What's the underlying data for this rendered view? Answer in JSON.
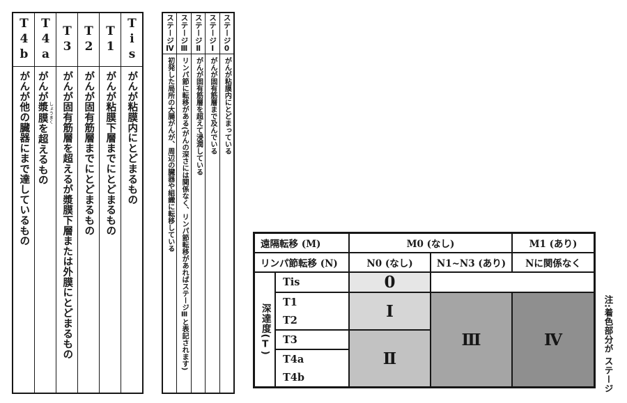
{
  "t_table": {
    "columns": [
      {
        "label": "T4b",
        "desc": "がんが他の臓器にまで達しているもの"
      },
      {
        "label": "T4a",
        "desc_pre": "がんが",
        "ruby_base": "漿膜",
        "ruby_text": "しょうまく",
        "desc_post": "を超えるもの"
      },
      {
        "label": "T3",
        "desc": "がんが固有筋層を超えるが漿膜下層または外膜にとどまるもの"
      },
      {
        "label": "T2",
        "desc": "がんが固有筋層までにとどまるもの"
      },
      {
        "label": "T1",
        "desc": "がんが粘膜下層までにとどまるもの"
      },
      {
        "label": "Tis",
        "desc": "がんが粘膜内にとどまるもの"
      }
    ]
  },
  "stage_table": {
    "columns": [
      {
        "prefix": "ステージ",
        "numeral": "Ⅳ",
        "desc": "初発した局所の大腸がんが、周辺の臓器や組織に転移している"
      },
      {
        "prefix": "ステージ",
        "numeral": "Ⅲ",
        "desc": "リンパ節に転移がある(がんの深さには関係なく、リンパ節転移があればステージⅢと表記されます)"
      },
      {
        "prefix": "ステージ",
        "numeral": "Ⅱ",
        "desc": "がんが固有筋層を超えて浸潤している"
      },
      {
        "prefix": "ステージ",
        "numeral": "Ⅰ",
        "desc": "がんが固有筋層まで及んでいる"
      },
      {
        "prefix": "ステージ",
        "numeral": "0",
        "desc": "がんが粘膜内にとどまっている"
      }
    ]
  },
  "matrix": {
    "m_row_label": "遠隔転移 (M)",
    "m0": "M0 (なし)",
    "m1": "M1 (あり)",
    "n_row_label": "リンパ節転移 (N)",
    "n0": "N0 (なし)",
    "n1n3": "N1~N3 (あり)",
    "n_any": "Nに関係なく",
    "depth": {
      "main": "深達度",
      "open": "(",
      "t": "T",
      "close": ")"
    },
    "t_labels": {
      "tis": "Tis",
      "t1": "T1",
      "t2": "T2",
      "t3": "T3",
      "t4a": "T4a",
      "t4b": "T4b"
    },
    "stages": {
      "s0": "0",
      "s1": "Ⅰ",
      "s2": "Ⅱ",
      "s3": "Ⅲ",
      "s4": "Ⅳ"
    },
    "colors": {
      "stage0_bg": "#e6e6e6",
      "stage1_bg": "#d6d6d6",
      "stage2_bg": "#c2c2c2",
      "stage3_bg": "#a5a5a5",
      "stage4_bg": "#8f8f8f"
    }
  },
  "note": "注:着色部分が ステージ"
}
